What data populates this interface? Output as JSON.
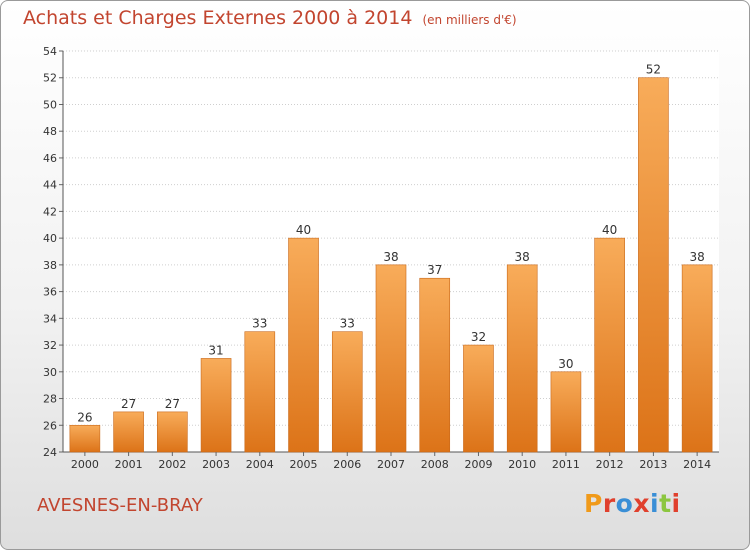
{
  "header": {
    "title": "Achats et Charges Externes 2000 à 2014",
    "subtitle": "(en milliers d'€)"
  },
  "footer": {
    "city": "AVESNES-EN-BRAY",
    "logo": "Proxiti"
  },
  "colors": {
    "bar_light": "#f8ac5a",
    "bar_dark": "#dc7318",
    "text_accent": "#c2452f",
    "logo_letters": [
      "#f09a1a",
      "#e0402d",
      "#3a8fd6",
      "#e0402d",
      "#3a8fd6",
      "#8cc63f",
      "#e0402d"
    ]
  },
  "chart_data": {
    "type": "bar",
    "title": "Achats et Charges Externes 2000 à 2014",
    "subtitle": "(en milliers d'€)",
    "xlabel": "",
    "ylabel": "",
    "categories": [
      "2000",
      "2001",
      "2002",
      "2003",
      "2004",
      "2005",
      "2006",
      "2007",
      "2008",
      "2009",
      "2010",
      "2011",
      "2012",
      "2013",
      "2014"
    ],
    "values": [
      26,
      27,
      27,
      31,
      33,
      40,
      33,
      38,
      37,
      32,
      38,
      30,
      40,
      52,
      38
    ],
    "ylim": [
      24,
      54
    ],
    "yticks": [
      24,
      26,
      28,
      30,
      32,
      34,
      36,
      38,
      40,
      42,
      44,
      46,
      48,
      50,
      52,
      54
    ],
    "grid": true,
    "data_labels": true
  }
}
